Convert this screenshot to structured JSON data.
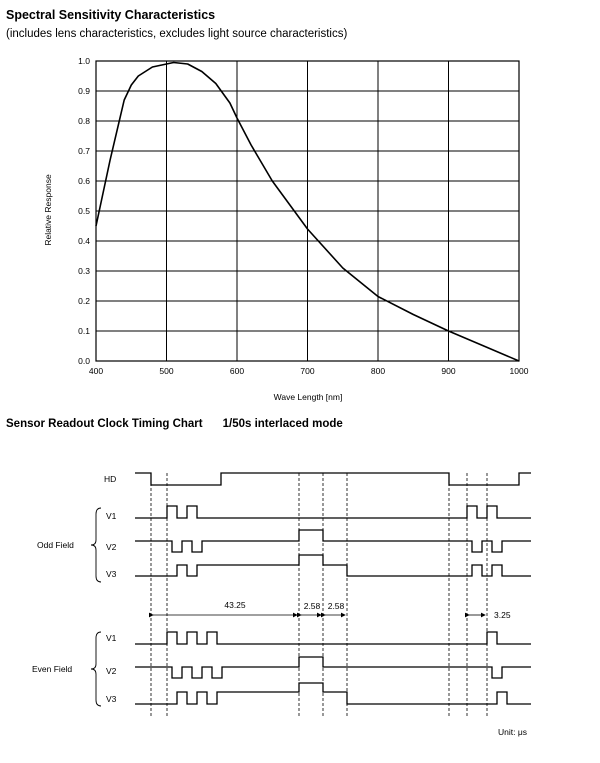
{
  "header": {
    "title": "Spectral Sensitivity Characteristics",
    "subtitle": "(includes lens characteristics, excludes light source characteristics)"
  },
  "chart_data": {
    "type": "line",
    "title": "Spectral Sensitivity Characteristics",
    "subtitle": "(includes lens characteristics, excludes light source characteristics)",
    "xlabel": "Wave Length [nm]",
    "ylabel": "Relative Response",
    "xlim": [
      400,
      1000
    ],
    "ylim": [
      0.0,
      1.0
    ],
    "x_ticks": [
      "400",
      "500",
      "600",
      "700",
      "800",
      "900",
      "1000"
    ],
    "y_ticks": [
      "0.0",
      "0.1",
      "0.2",
      "0.3",
      "0.4",
      "0.5",
      "0.6",
      "0.7",
      "0.8",
      "0.9",
      "1.0"
    ],
    "grid": true,
    "series": [
      {
        "x": [
          400,
          420,
          440,
          450,
          460,
          480,
          500,
          510,
          530,
          550,
          570,
          590,
          600,
          620,
          650,
          700,
          750,
          800,
          850,
          900,
          950,
          1000
        ],
        "y": [
          0.45,
          0.67,
          0.87,
          0.92,
          0.95,
          0.98,
          0.99,
          0.995,
          0.99,
          0.965,
          0.925,
          0.86,
          0.81,
          0.72,
          0.6,
          0.44,
          0.31,
          0.215,
          0.155,
          0.1,
          0.05,
          0.0
        ]
      }
    ]
  },
  "timing": {
    "title": "Sensor Readout Clock Timing Chart",
    "mode": "1/50s interlaced mode",
    "signals": {
      "hd": "HD",
      "odd_v1": "V1",
      "odd_v2": "V2",
      "odd_v3": "V3",
      "even_v1": "V1",
      "even_v2": "V2",
      "even_v3": "V3"
    },
    "groups": {
      "odd": "Odd Field",
      "even": "Even Field"
    },
    "dimensions": {
      "d1": "43.25",
      "d2": "2.58",
      "d3": "2.58",
      "d4": "3.25"
    },
    "unit": "Unit: μs"
  }
}
